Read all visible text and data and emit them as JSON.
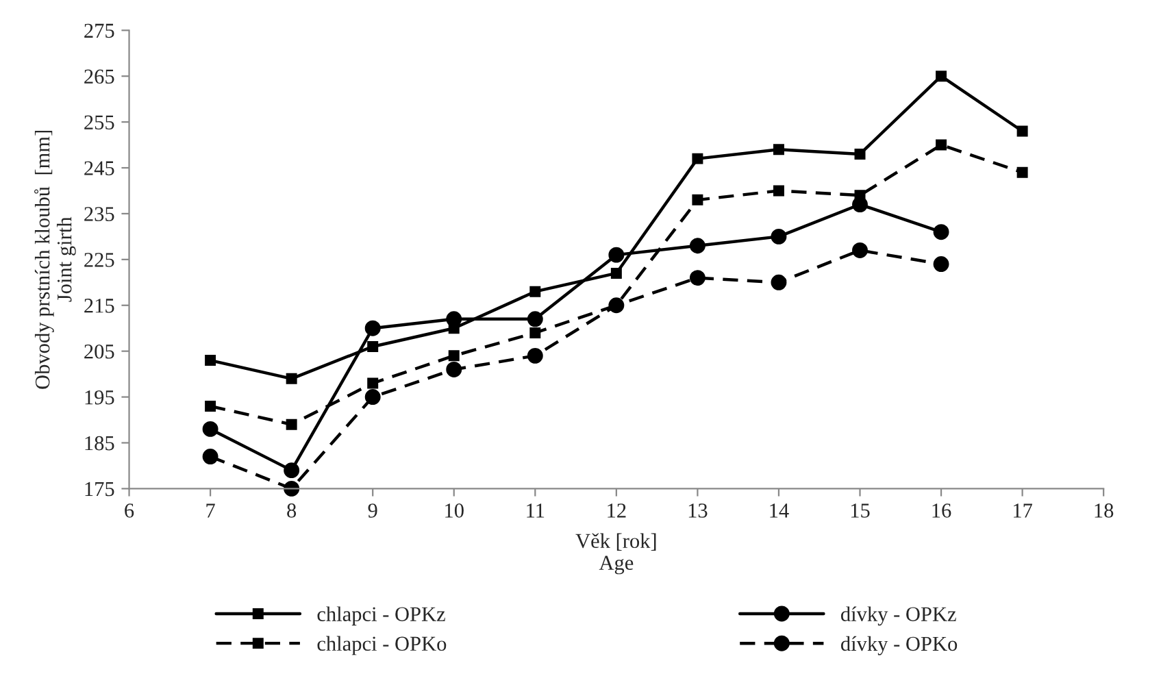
{
  "chart_data": {
    "type": "line",
    "xlabel": "Věk [rok]\nAge",
    "ylabel": "Obvody prstních kloubů  [mm]\nJoint girth",
    "xlim": [
      6,
      18
    ],
    "xticks": [
      6,
      7,
      8,
      9,
      10,
      11,
      12,
      13,
      14,
      15,
      16,
      17,
      18
    ],
    "ylim": [
      175,
      275
    ],
    "yticks": [
      175,
      185,
      195,
      205,
      215,
      225,
      235,
      245,
      255,
      265,
      275
    ],
    "grid": false,
    "legend": "bottom",
    "series": [
      {
        "name": "chlapci - OPKz",
        "color": "#000000",
        "marker": "square",
        "line_style": "solid",
        "x": [
          7,
          8,
          9,
          10,
          11,
          12,
          13,
          14,
          15,
          16,
          17
        ],
        "values": [
          203,
          199,
          206,
          210,
          218,
          222,
          247,
          249,
          248,
          265,
          253
        ]
      },
      {
        "name": "chlapci - OPKo",
        "color": "#000000",
        "marker": "square",
        "line_style": "dashed",
        "x": [
          7,
          8,
          9,
          10,
          11,
          12,
          13,
          14,
          15,
          16,
          17
        ],
        "values": [
          193,
          189,
          198,
          204,
          209,
          215,
          238,
          240,
          239,
          250,
          244
        ]
      },
      {
        "name": "dívky - OPKz",
        "color": "#000000",
        "marker": "circle",
        "line_style": "solid",
        "x": [
          7,
          8,
          9,
          10,
          11,
          12,
          13,
          14,
          15,
          16
        ],
        "values": [
          188,
          179,
          210,
          212,
          212,
          226,
          228,
          230,
          237,
          231
        ]
      },
      {
        "name": "dívky - OPKo",
        "color": "#000000",
        "marker": "circle",
        "line_style": "dashed",
        "x": [
          7,
          8,
          9,
          10,
          11,
          12,
          13,
          14,
          15,
          16
        ],
        "values": [
          182,
          175,
          195,
          201,
          204,
          215,
          221,
          220,
          227,
          224
        ]
      }
    ]
  }
}
